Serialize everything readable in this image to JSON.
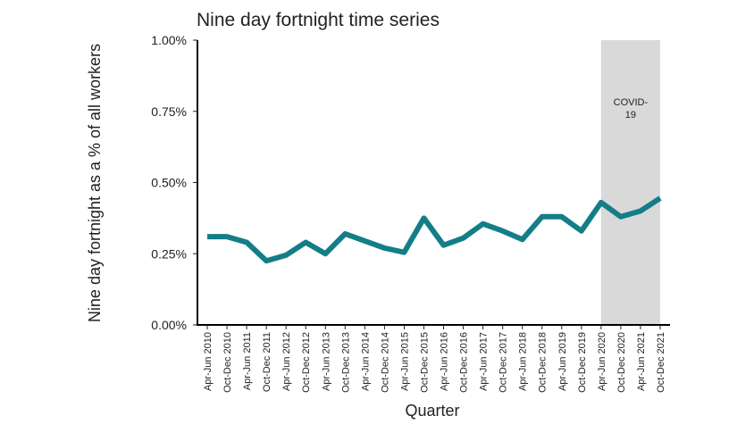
{
  "chart_data": {
    "type": "line",
    "title": "Nine day fortnight time series",
    "x_label": "Quarter",
    "y_label": "Nine day fortnight as a % of all workers",
    "categories": [
      "Apr-Jun 2010",
      "Oct-Dec 2010",
      "Apr-Jun 2011",
      "Oct-Dec 2011",
      "Apr-Jun 2012",
      "Oct-Dec 2012",
      "Apr-Jun 2013",
      "Oct-Dec 2013",
      "Apr-Jun 2014",
      "Oct-Dec 2014",
      "Apr-Jun 2015",
      "Oct-Dec 2015",
      "Apr-Jun 2016",
      "Oct-Dec 2016",
      "Apr-Jun 2017",
      "Oct-Dec 2017",
      "Apr-Jun 2018",
      "Oct-Dec 2018",
      "Apr-Jun 2019",
      "Oct-Dec 2019",
      "Apr-Jun 2020",
      "Oct-Dec 2020",
      "Apr-Jun 2021",
      "Oct-Dec 2021"
    ],
    "values": [
      0.31,
      0.31,
      0.29,
      0.225,
      0.245,
      0.29,
      0.25,
      0.32,
      0.295,
      0.27,
      0.255,
      0.375,
      0.28,
      0.305,
      0.355,
      0.33,
      0.3,
      0.38,
      0.38,
      0.33,
      0.43,
      0.38,
      0.4,
      0.445
    ],
    "color": "#137e87",
    "ylim": [
      0,
      1
    ],
    "yticks": [
      {
        "value": 0,
        "label": "0.00%"
      },
      {
        "value": 0.25,
        "label": "0.25%"
      },
      {
        "value": 0.5,
        "label": "0.50%"
      },
      {
        "value": 0.75,
        "label": "0.75%"
      },
      {
        "value": 1,
        "label": "1.00%"
      }
    ],
    "shaded_region": {
      "label": "COVID-19",
      "x_start": "Apr-Jun 2020",
      "x_end": "Oct-Dec 2021",
      "color": "#d9d9d9"
    }
  }
}
